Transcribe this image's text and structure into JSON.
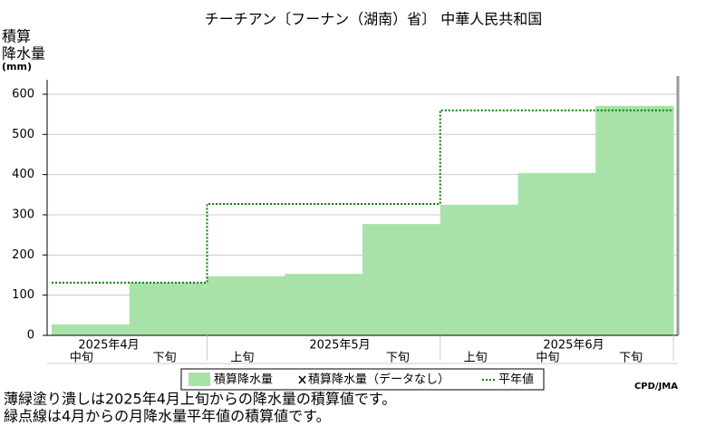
{
  "chart_data": {
    "type": "step-area",
    "title": "チーチアン〔フーナン（湖南）省〕 中華人民共和国",
    "y_label": [
      "積算",
      "降水量",
      "(mm)"
    ],
    "categories": [
      "中旬",
      "下旬",
      "上旬",
      null,
      "下旬",
      "上旬",
      "中旬",
      "下旬"
    ],
    "months": [
      "2025年4月",
      "2025年5月",
      "2025年6月"
    ],
    "series": [
      {
        "name": "積算降水量",
        "color": "#a8e2a8",
        "values": [
          27,
          131,
          147,
          153,
          277,
          325,
          404,
          571
        ]
      },
      {
        "name": "平年値",
        "color": "#008000",
        "values": [
          131,
          131,
          327,
          327,
          327,
          560,
          560,
          560
        ]
      }
    ],
    "no_data_label": "積算降水量（データなし）",
    "ylim": [
      0,
      636
    ],
    "yticks": [
      0,
      100,
      200,
      300,
      400,
      500,
      600
    ],
    "grid": true,
    "credit": "CPD/JMA",
    "notes": [
      "薄緑塗り潰しは2025年4月上旬からの降水量の積算値です。",
      "緑点線は4月からの月降水量平年値の積算値です。"
    ]
  }
}
